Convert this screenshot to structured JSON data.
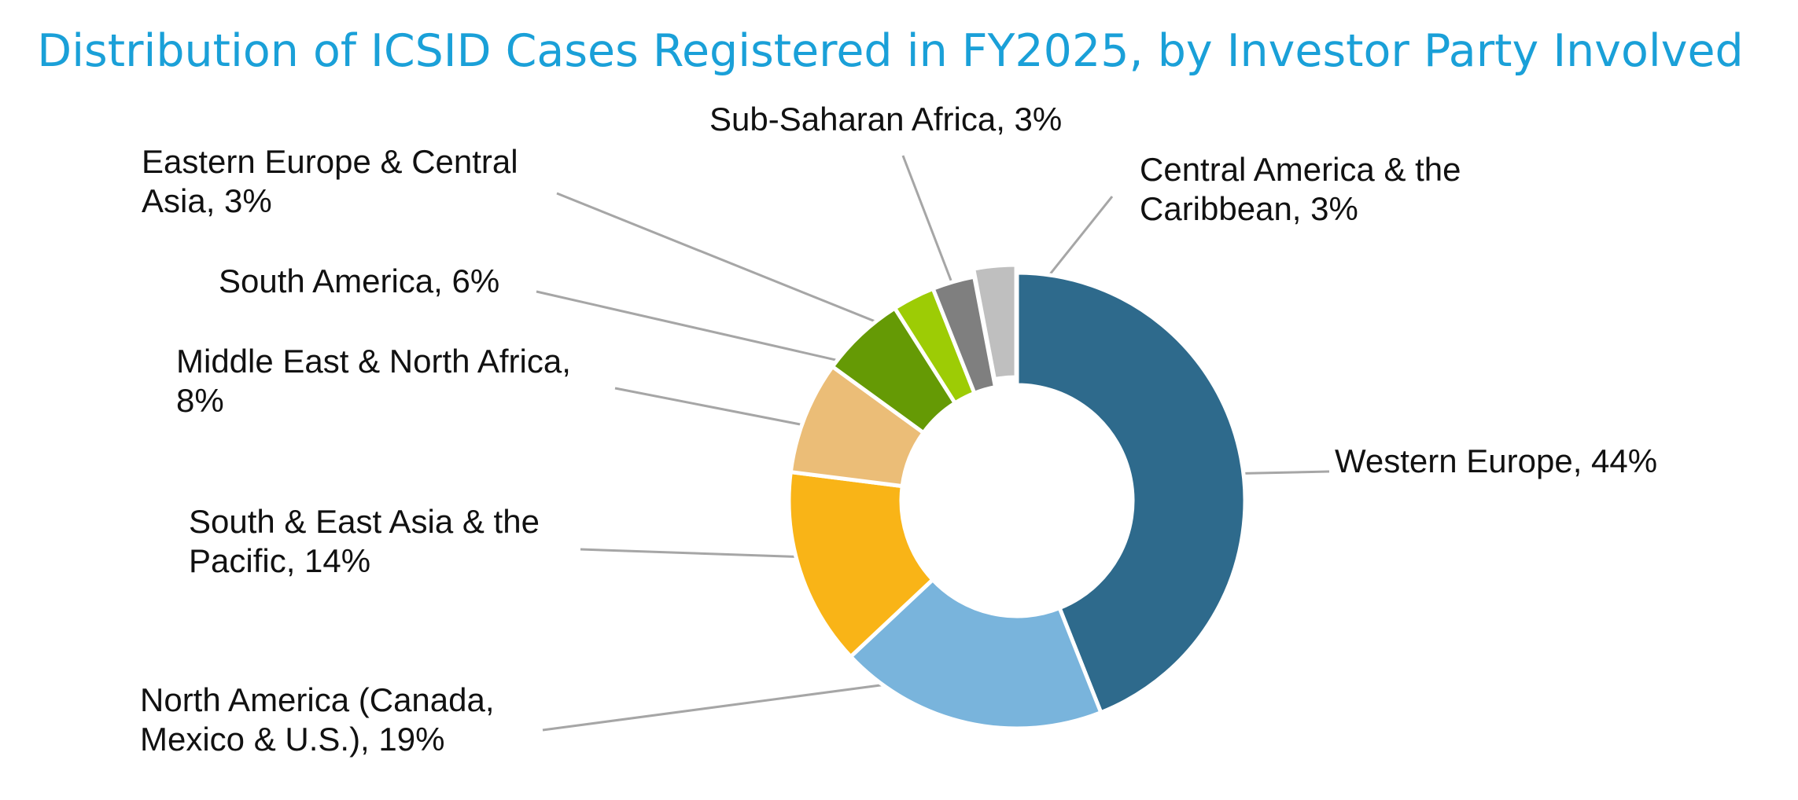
{
  "chart_data": {
    "type": "pie",
    "variant": "donut",
    "title": "Distribution of ICSID Cases Registered in FY2025, by Investor Party Involved",
    "unit": "%",
    "slices": [
      {
        "name": "Western Europe",
        "value": 44,
        "color": "#2e6a8c",
        "label_lines": [
          "Western Europe, 44%"
        ]
      },
      {
        "name": "North America (Canada, Mexico & U.S.)",
        "value": 19,
        "color": "#79b4dc",
        "label_lines": [
          "North America (Canada,",
          "Mexico & U.S.), 19%"
        ]
      },
      {
        "name": "South & East Asia & the Pacific",
        "value": 14,
        "color": "#f9b417",
        "label_lines": [
          "South & East Asia & the",
          "Pacific, 14%"
        ]
      },
      {
        "name": "Middle East & North Africa",
        "value": 8,
        "color": "#ebbd77",
        "label_lines": [
          "Middle East & North Africa,",
          "8%"
        ]
      },
      {
        "name": "South America",
        "value": 6,
        "color": "#659a05",
        "label_lines": [
          "South America, 6%"
        ]
      },
      {
        "name": "Eastern Europe & Central Asia",
        "value": 3,
        "color": "#9dcc05",
        "label_lines": [
          "Eastern Europe & Central",
          "Asia, 3%"
        ]
      },
      {
        "name": "Sub-Saharan Africa",
        "value": 3,
        "color": "#7f7f7f",
        "label_lines": [
          "Sub-Saharan Africa, 3%"
        ]
      },
      {
        "name": "Central America & the Caribbean",
        "value": 3,
        "color": "#bfbfbf",
        "label_lines": [
          "Central America & the",
          "Caribbean, 3%"
        ]
      }
    ]
  }
}
